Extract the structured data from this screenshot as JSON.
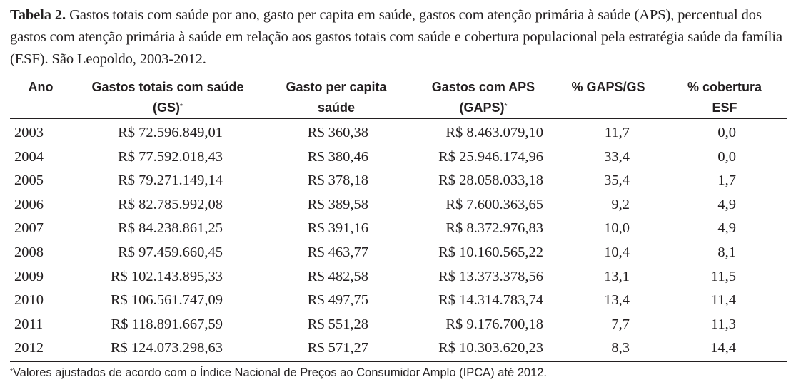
{
  "caption": {
    "label": "Tabela 2.",
    "text": " Gastos totais com saúde por ano, gasto per capita em saúde, gastos com atenção primária à saúde (APS), percentual dos gastos com atenção primária à saúde em relação aos gastos totais com saúde e cobertura populacional pela estratégia saúde da família (ESF). São Leopoldo, 2003-2012."
  },
  "table": {
    "headers": {
      "ano": "Ano",
      "gs_line1": "Gastos totais com saúde",
      "gs_line2": "(GS)",
      "gs_mark": "*",
      "capita_line1": "Gasto per capita",
      "capita_line2": "saúde",
      "gaps_line1": "Gastos com APS",
      "gaps_line2": "(GAPS)",
      "gaps_mark": "*",
      "pct": "% GAPS/GS",
      "esf_line1": "% cobertura",
      "esf_line2": "ESF"
    },
    "rows": [
      {
        "ano": "2003",
        "gs": "R$ 72.596.849,01",
        "capita": "R$ 360,38",
        "gaps": "R$ 8.463.079,10",
        "pct": "11,7",
        "esf": "0,0"
      },
      {
        "ano": "2004",
        "gs": "R$ 77.592.018,43",
        "capita": "R$ 380,46",
        "gaps": "R$ 25.946.174,96",
        "pct": "33,4",
        "esf": "0,0"
      },
      {
        "ano": "2005",
        "gs": "R$ 79.271.149,14",
        "capita": "R$ 378,18",
        "gaps": "R$ 28.058.033,18",
        "pct": "35,4",
        "esf": "1,7"
      },
      {
        "ano": "2006",
        "gs": "R$ 82.785.992,08",
        "capita": "R$ 389,58",
        "gaps": "R$ 7.600.363,65",
        "pct": "9,2",
        "esf": "4,9"
      },
      {
        "ano": "2007",
        "gs": "R$ 84.238.861,25",
        "capita": "R$ 391,16",
        "gaps": "R$ 8.372.976,83",
        "pct": "10,0",
        "esf": "4,9"
      },
      {
        "ano": "2008",
        "gs": "R$ 97.459.660,45",
        "capita": "R$ 463,77",
        "gaps": "R$ 10.160.565,22",
        "pct": "10,4",
        "esf": "8,1"
      },
      {
        "ano": "2009",
        "gs": "R$ 102.143.895,33",
        "capita": "R$ 482,58",
        "gaps": "R$ 13.373.378,56",
        "pct": "13,1",
        "esf": "11,5"
      },
      {
        "ano": "2010",
        "gs": "R$ 106.561.747,09",
        "capita": "R$ 497,75",
        "gaps": "R$ 14.314.783,74",
        "pct": "13,4",
        "esf": "11,4"
      },
      {
        "ano": "2011",
        "gs": "R$ 118.891.667,59",
        "capita": "R$ 551,28",
        "gaps": "R$ 9.176.700,18",
        "pct": "7,7",
        "esf": "11,3"
      },
      {
        "ano": "2012",
        "gs": "R$ 124.073.298,63",
        "capita": "R$ 571,27",
        "gaps": "R$ 10.303.620,23",
        "pct": "8,3",
        "esf": "14,4"
      }
    ]
  },
  "footnote": {
    "mark": "*",
    "text": "Valores ajustados de acordo com o Índice Nacional de Preços ao Consumidor Amplo (IPCA) até 2012."
  }
}
